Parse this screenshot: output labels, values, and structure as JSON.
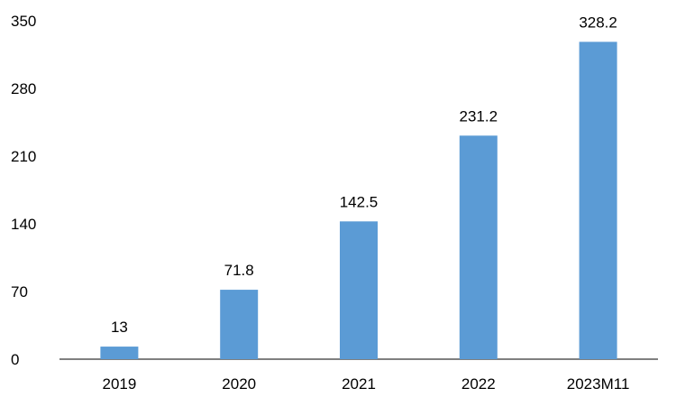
{
  "chart_data": {
    "type": "bar",
    "categories": [
      "2019",
      "2020",
      "2021",
      "2022",
      "2023M11"
    ],
    "values": [
      13,
      71.8,
      142.5,
      231.2,
      328.2
    ],
    "data_labels": [
      "13",
      "71.8",
      "142.5",
      "231.2",
      "328.2"
    ],
    "y_ticks": [
      "0",
      "70",
      "140",
      "210",
      "280",
      "350"
    ],
    "ylim": [
      0,
      350
    ],
    "grid": false,
    "legend": "none",
    "bar_color": "#5b9bd5"
  }
}
